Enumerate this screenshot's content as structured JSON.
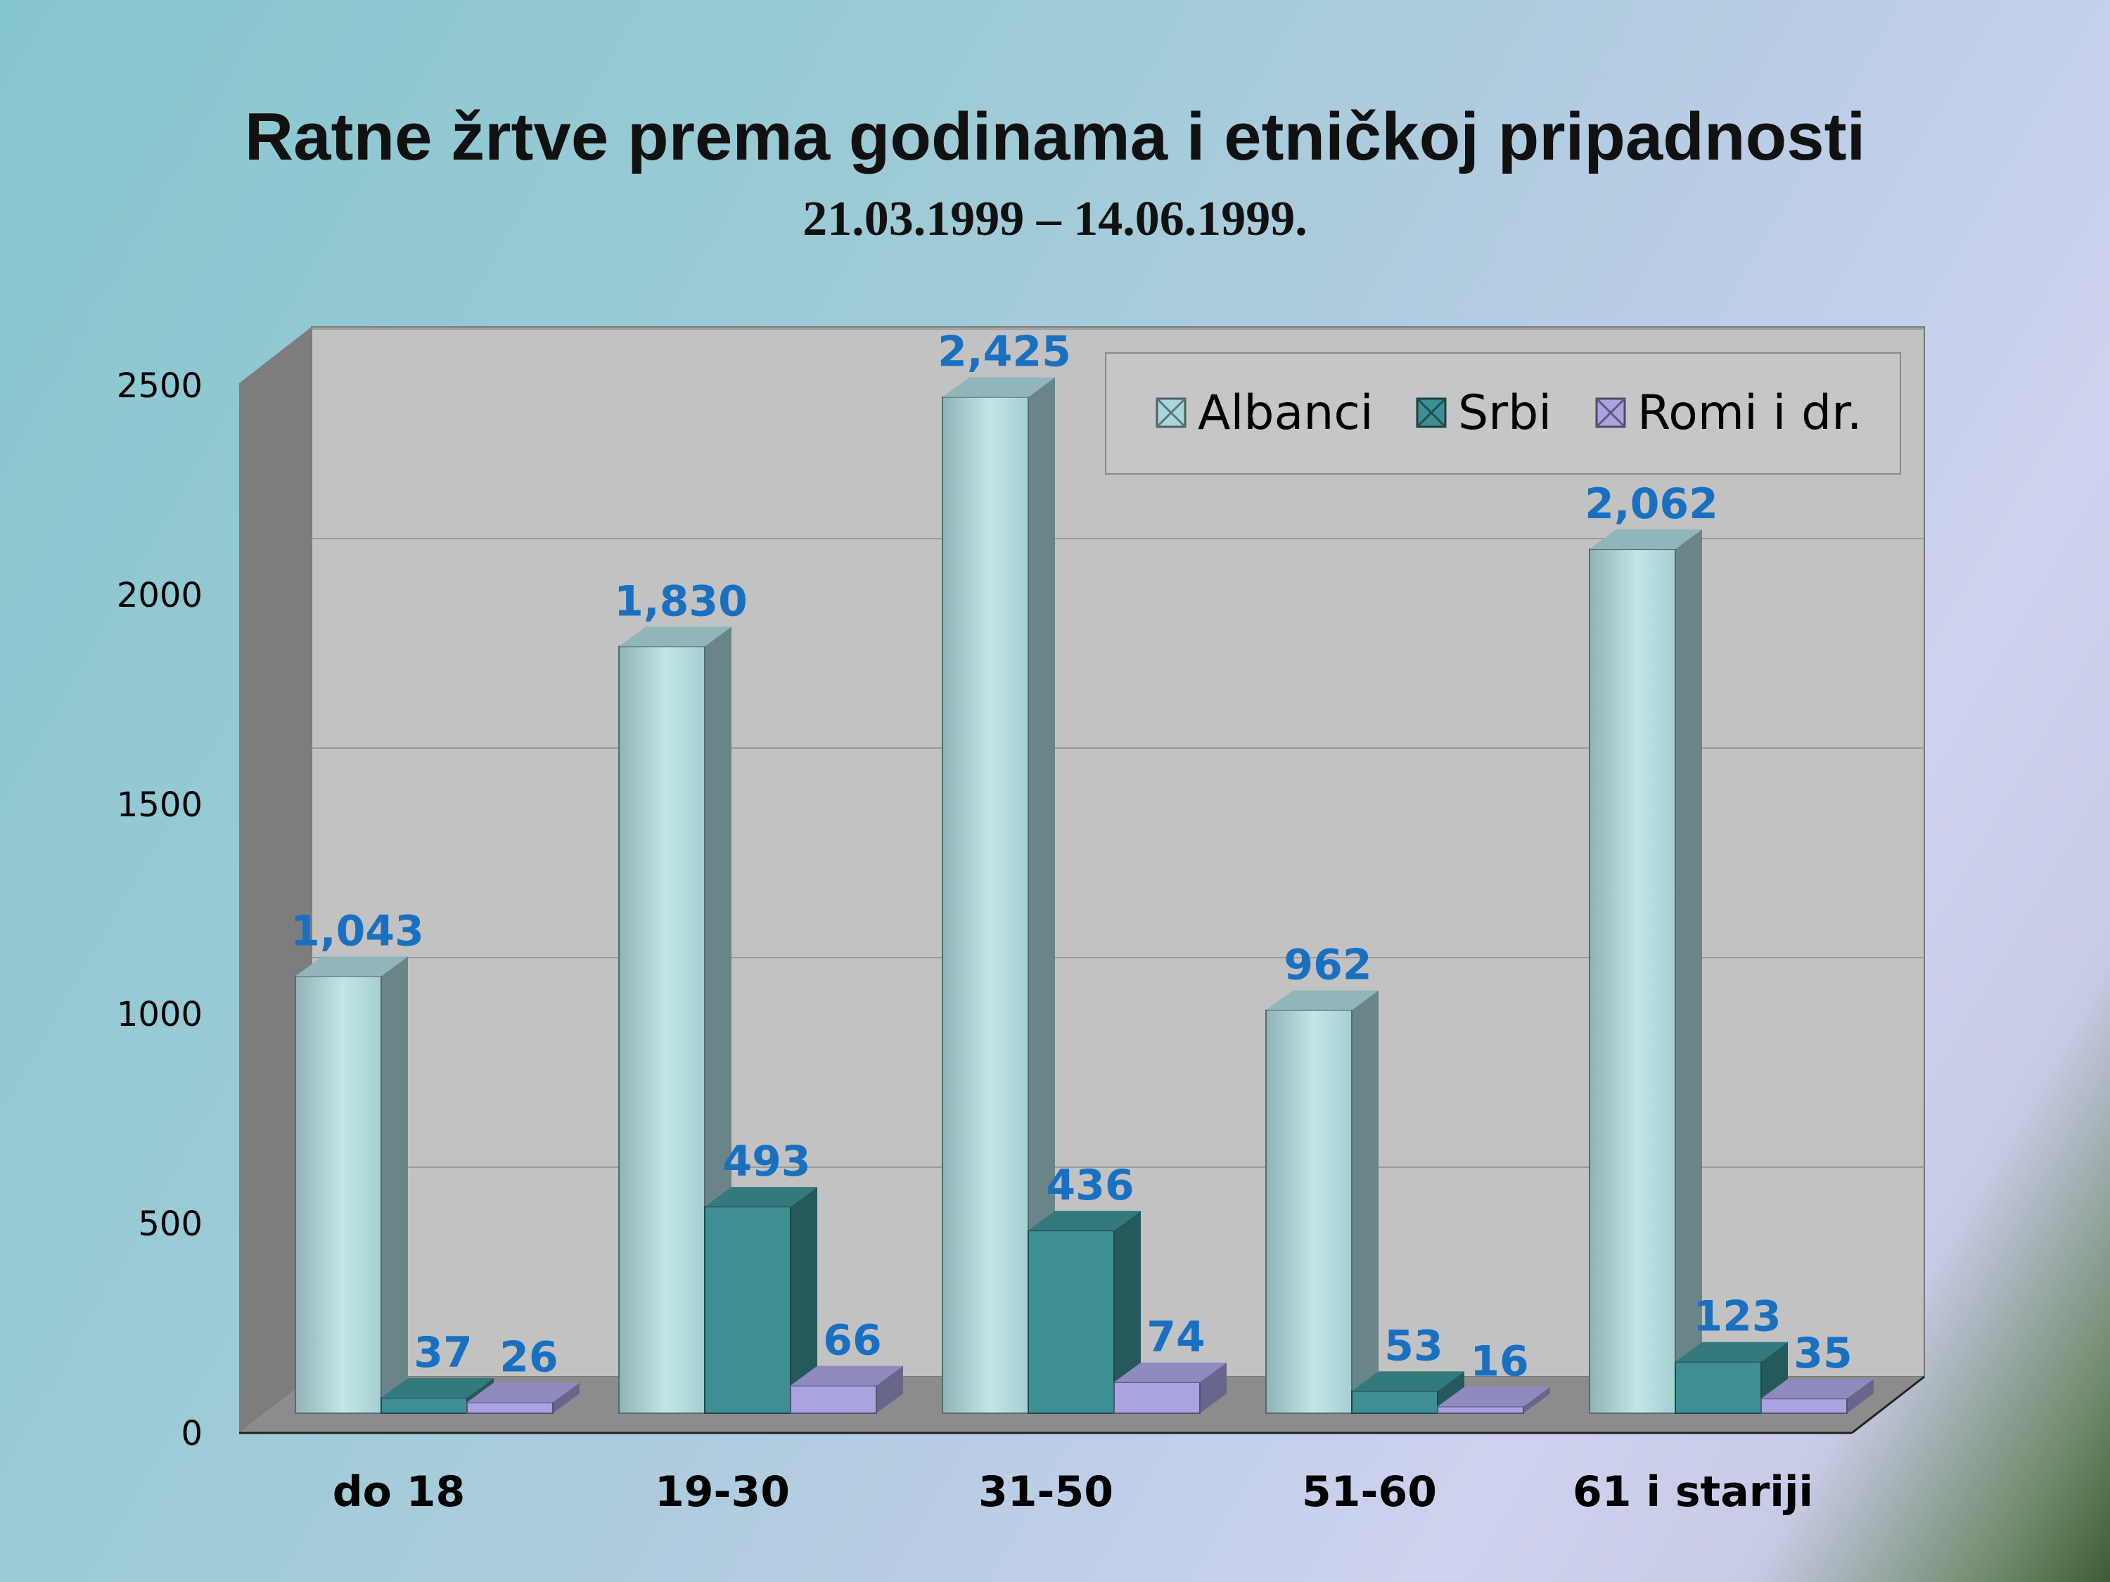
{
  "chart_data": {
    "type": "bar",
    "title": "Ratne žrtve prema godinama i etničkoj pripadnosti",
    "subtitle": "21.03.1999 – 14.06.1999.",
    "categories": [
      "do 18",
      "19-30",
      "31-50",
      "51-60",
      "61 i stariji"
    ],
    "series": [
      {
        "name": "Albanci",
        "values": [
          1043,
          1830,
          2425,
          962,
          2062
        ],
        "labels": [
          "1,043",
          "1,830",
          "2,425",
          "962",
          "2,062"
        ],
        "color": "#a9d6da"
      },
      {
        "name": "Srbi",
        "values": [
          37,
          493,
          436,
          53,
          123
        ],
        "labels": [
          "37",
          "493",
          "436",
          "53",
          "123"
        ],
        "color": "#3d8f93"
      },
      {
        "name": "Romi i dr.",
        "values": [
          26,
          66,
          74,
          16,
          35
        ],
        "labels": [
          "26",
          "66",
          "74",
          "16",
          "35"
        ],
        "color": "#a9a4e0"
      }
    ],
    "yticks": [
      0,
      500,
      1000,
      1500,
      2000,
      2500
    ],
    "ylim": [
      0,
      2500
    ],
    "grid": true,
    "legend_position": "top-right",
    "label_color": "#1a70c0"
  }
}
